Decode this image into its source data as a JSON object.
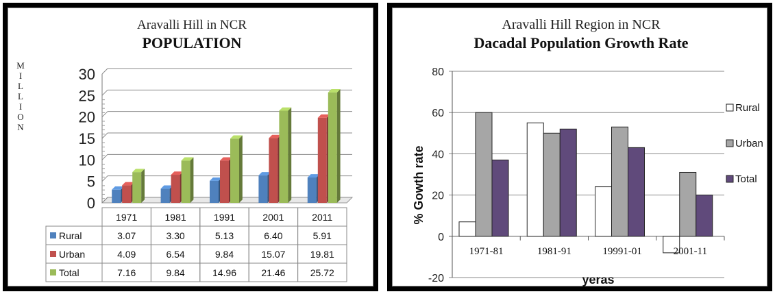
{
  "chart_data": [
    {
      "type": "bar",
      "title": "Aravalli  Hill  in NCR",
      "subtitle": "POPULATION",
      "ylabel": "M I L L I O N",
      "ylim": [
        0,
        30
      ],
      "yticks": [
        0,
        5,
        10,
        15,
        20,
        25,
        30
      ],
      "categories": [
        "1971",
        "1981",
        "1991",
        "2001",
        "2011"
      ],
      "series": [
        {
          "name": "Rural",
          "color": "#4f81bd",
          "values": [
            3.07,
            3.3,
            5.13,
            6.4,
            5.91
          ]
        },
        {
          "name": "Urban",
          "color": "#c0504d",
          "values": [
            4.09,
            6.54,
            9.84,
            15.07,
            19.81
          ]
        },
        {
          "name": "Total",
          "color": "#9bbb59",
          "values": [
            7.16,
            9.84,
            14.96,
            21.46,
            25.72
          ]
        }
      ],
      "data_table": {
        "rows": [
          {
            "label": "Rural",
            "cells": [
              "3.07",
              "3.30",
              "5.13",
              "6.40",
              "5.91"
            ]
          },
          {
            "label": "Urban",
            "cells": [
              "4.09",
              "6.54",
              "9.84",
              "15.07",
              "19.81"
            ]
          },
          {
            "label": "Total",
            "cells": [
              "7.16",
              "9.84",
              "14.96",
              "21.46",
              "25.72"
            ]
          }
        ]
      },
      "grid": true,
      "legend": "in data table"
    },
    {
      "type": "bar",
      "title": "Aravalli Hill Region in NCR",
      "subtitle": "Dacadal Population Growth Rate",
      "xlabel": "yeras",
      "ylabel": "% Gowth rate",
      "ylim": [
        -20,
        80
      ],
      "yticks": [
        -20,
        0,
        20,
        40,
        60,
        80
      ],
      "categories": [
        "1971-81",
        "1981-91",
        "19991-01",
        "2001-11"
      ],
      "series": [
        {
          "name": "Rural",
          "color": "#ffffff",
          "values": [
            7,
            55,
            24,
            -8
          ]
        },
        {
          "name": "Urban",
          "color": "#a6a6a6",
          "values": [
            60,
            50,
            53,
            31
          ]
        },
        {
          "name": "Total",
          "color": "#604a7b",
          "values": [
            37,
            52,
            43,
            20
          ]
        }
      ],
      "grid": true,
      "legend": "right"
    }
  ]
}
